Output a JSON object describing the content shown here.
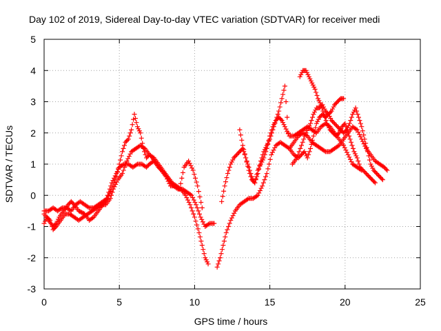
{
  "chart_data": {
    "type": "scatter",
    "title": "Day 102 of 2019, Sidereal Day-to-day VTEC variation (SDTVAR) for receiver medi",
    "xlabel": "GPS time / hours",
    "ylabel": "SDTVAR / TECUs",
    "xlim": [
      0,
      25
    ],
    "ylim": [
      -3,
      5
    ],
    "x_ticks": [
      "0",
      "5",
      "10",
      "15",
      "20",
      "25"
    ],
    "y_ticks": [
      "-3",
      "-2",
      "-1",
      "0",
      "1",
      "2",
      "3",
      "4",
      "5"
    ],
    "grid": true,
    "legend": "none",
    "marker": "plus",
    "color": "#ff0000",
    "series": [
      {
        "x": [
          0.0,
          0.3,
          0.6,
          0.8,
          1.0,
          1.3,
          1.6,
          1.8,
          2.0,
          2.3,
          2.7,
          3.0,
          3.3,
          3.6,
          3.9,
          4.1,
          4.3,
          4.5,
          4.8,
          5.0,
          5.3,
          5.6,
          5.9,
          6.2,
          6.5,
          6.8,
          7.0,
          7.3,
          7.6,
          8.0,
          8.3,
          8.6,
          8.9,
          9.2,
          9.5,
          9.8,
          10.1,
          10.4,
          10.7,
          11.0,
          11.3
        ],
        "y": [
          -0.6,
          -0.8,
          -1.0,
          -0.9,
          -0.7,
          -0.5,
          -0.3,
          -0.2,
          -0.3,
          -0.5,
          -0.6,
          -0.8,
          -0.7,
          -0.5,
          -0.3,
          -0.2,
          0.1,
          0.4,
          0.7,
          0.9,
          1.0,
          1.0,
          0.9,
          1.0,
          1.0,
          0.9,
          1.0,
          1.1,
          0.9,
          0.7,
          0.5,
          0.3,
          0.2,
          0.2,
          0.1,
          0.0,
          -0.3,
          -0.7,
          -1.0,
          -0.9,
          -0.9
        ]
      },
      {
        "x": [
          0.0,
          0.2,
          0.4,
          0.6,
          0.8,
          1.1,
          1.4,
          1.7,
          2.0,
          2.3,
          2.6,
          2.9,
          3.2,
          3.5,
          3.8,
          4.1,
          4.4,
          4.6,
          4.9,
          5.2,
          5.5,
          5.8,
          6.1,
          6.4,
          6.7,
          7.0,
          7.3,
          7.6,
          7.9,
          8.2,
          8.5,
          8.8,
          9.1,
          9.4,
          9.7,
          10.0,
          10.3,
          10.5,
          10.7,
          10.9
        ],
        "y": [
          -0.9,
          -0.7,
          -0.8,
          -1.1,
          -1.0,
          -0.8,
          -0.6,
          -0.6,
          -0.7,
          -0.8,
          -0.7,
          -0.6,
          -0.5,
          -0.4,
          -0.3,
          -0.3,
          -0.1,
          0.2,
          0.5,
          0.7,
          1.1,
          1.4,
          1.5,
          1.6,
          1.5,
          1.3,
          1.2,
          1.0,
          0.8,
          0.6,
          0.4,
          0.3,
          0.2,
          0.0,
          -0.3,
          -0.7,
          -1.2,
          -1.6,
          -2.0,
          -2.2
        ]
      },
      {
        "x": [
          0.0,
          0.3,
          0.6,
          0.9,
          1.2,
          1.5,
          1.8,
          2.1,
          2.4,
          2.7,
          3.0,
          3.3,
          3.6,
          3.9,
          4.2,
          4.5,
          4.8,
          5.0,
          5.2,
          5.4,
          5.6,
          5.8,
          6.0,
          6.2,
          6.4,
          6.6,
          6.8,
          7.0,
          7.2,
          7.5,
          7.8,
          8.1,
          8.4,
          8.7,
          9.0,
          9.3,
          9.6,
          9.9,
          10.2,
          10.5
        ],
        "y": [
          -0.5,
          -0.5,
          -0.4,
          -0.5,
          -0.4,
          -0.4,
          -0.5,
          -0.3,
          -0.2,
          -0.3,
          -0.4,
          -0.4,
          -0.3,
          -0.2,
          -0.1,
          0.2,
          0.6,
          1.0,
          1.4,
          1.7,
          1.8,
          2.1,
          2.6,
          2.2,
          2.0,
          1.5,
          1.2,
          1.3,
          1.2,
          1.0,
          0.8,
          0.6,
          0.3,
          0.3,
          0.2,
          0.9,
          1.1,
          0.8,
          0.3,
          -0.4
        ]
      },
      {
        "x": [
          11.5,
          11.7,
          11.9,
          12.1,
          12.4,
          12.7,
          13.0,
          13.3,
          13.6,
          13.9,
          14.2,
          14.5,
          14.8,
          15.1,
          15.4,
          15.7,
          16.0,
          16.3,
          16.6,
          16.9,
          17.2,
          17.5,
          17.8,
          18.1,
          18.4,
          18.7,
          19.0,
          19.3,
          19.6,
          19.9,
          20.2,
          20.5,
          20.8,
          21.1,
          21.4,
          21.7,
          22.0,
          22.3,
          22.6,
          22.8
        ],
        "y": [
          -2.3,
          -2.0,
          -1.6,
          -1.2,
          -0.8,
          -0.5,
          -0.3,
          -0.2,
          -0.1,
          -0.1,
          0.0,
          0.3,
          0.7,
          1.3,
          1.6,
          1.7,
          1.6,
          1.5,
          1.7,
          1.9,
          2.0,
          1.9,
          1.7,
          1.6,
          1.5,
          1.4,
          1.4,
          1.5,
          1.6,
          1.8,
          2.0,
          2.2,
          2.1,
          1.8,
          1.5,
          1.3,
          1.1,
          1.0,
          0.9,
          0.8
        ]
      },
      {
        "x": [
          11.8,
          12.0,
          12.2,
          12.4,
          12.6,
          12.8,
          13.0,
          13.2,
          13.4,
          13.6,
          13.8,
          14.0,
          14.2,
          14.4,
          14.6,
          14.8,
          15.0,
          15.2,
          15.4,
          15.6,
          15.8,
          16.0,
          16.3,
          16.6,
          16.9,
          17.2,
          17.5,
          17.8,
          18.1,
          18.4,
          18.7,
          19.0,
          19.3,
          19.6,
          19.9,
          20.2,
          20.5,
          20.8,
          21.1
        ],
        "y": [
          -0.2,
          0.3,
          0.7,
          1.0,
          1.2,
          1.3,
          1.4,
          1.5,
          1.2,
          0.8,
          0.5,
          0.4,
          0.8,
          1.0,
          1.2,
          1.5,
          1.9,
          2.2,
          2.4,
          2.5,
          2.4,
          2.2,
          1.9,
          1.9,
          2.0,
          2.1,
          2.2,
          2.1,
          2.0,
          2.2,
          2.3,
          2.2,
          2.0,
          1.8,
          1.6,
          1.3,
          1.0,
          0.9,
          0.8
        ]
      },
      {
        "x": [
          13.0,
          13.2,
          13.4,
          13.6,
          13.8,
          14.0,
          14.2,
          14.4,
          14.6,
          14.8,
          15.0,
          15.2,
          15.4,
          15.6,
          15.8,
          16.0,
          16.3,
          16.6,
          16.9,
          17.1,
          17.3,
          17.5,
          17.7,
          17.9,
          18.1,
          18.3,
          18.5,
          18.7,
          18.9,
          19.1,
          19.3,
          19.5,
          19.7,
          19.9
        ],
        "y": [
          2.1,
          1.6,
          1.2,
          0.9,
          0.6,
          0.4,
          0.7,
          1.1,
          1.4,
          1.6,
          1.8,
          2.1,
          2.4,
          2.7,
          3.1,
          3.5,
          1.5,
          1.3,
          1.2,
          1.3,
          1.4,
          1.2,
          1.5,
          1.9,
          2.3,
          2.5,
          2.6,
          2.5,
          2.6,
          2.7,
          2.9,
          3.0,
          3.1,
          3.1
        ]
      },
      {
        "x": [
          16.5,
          16.8,
          17.1,
          17.4,
          17.7,
          17.9,
          18.1,
          18.3,
          18.5,
          18.7,
          18.9,
          19.1,
          19.3,
          19.5,
          19.7,
          19.9,
          20.1,
          20.3,
          20.5,
          20.7,
          20.9,
          21.1,
          21.3,
          21.5,
          21.7,
          21.9,
          22.1,
          22.3,
          22.5
        ],
        "y": [
          1.0,
          1.2,
          1.6,
          2.0,
          2.3,
          2.6,
          2.8,
          2.8,
          2.9,
          2.7,
          2.6,
          2.4,
          2.3,
          2.2,
          2.1,
          2.0,
          2.1,
          2.3,
          2.6,
          2.8,
          2.5,
          2.2,
          1.8,
          1.4,
          1.0,
          0.8,
          0.7,
          0.6,
          0.5
        ]
      },
      {
        "x": [
          17.0,
          17.2,
          17.4,
          17.6,
          17.8,
          18.0,
          18.2,
          18.4,
          18.6,
          18.8,
          19.0,
          19.2,
          19.4,
          19.6,
          19.8,
          20.0,
          20.2,
          20.4,
          20.6,
          20.8,
          21.0,
          21.2,
          21.4,
          21.6,
          21.8,
          22.0
        ],
        "y": [
          3.8,
          4.0,
          4.0,
          3.8,
          3.6,
          3.4,
          3.1,
          2.9,
          2.6,
          2.3,
          2.1,
          2.0,
          1.9,
          2.0,
          2.2,
          2.3,
          2.0,
          1.7,
          1.4,
          1.2,
          0.9,
          0.8,
          0.7,
          0.6,
          0.5,
          0.4
        ]
      }
    ]
  }
}
